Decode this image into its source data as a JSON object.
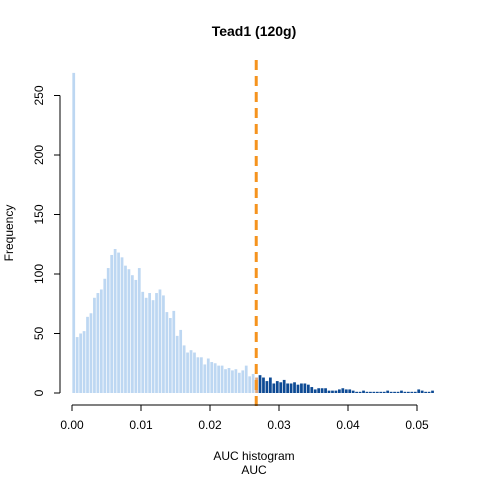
{
  "chart_data": {
    "type": "bar",
    "title": "Tead1 (120g)",
    "xlabel": "AUC histogram",
    "xlabel2": "AUC",
    "ylabel": "Frequency",
    "xlim": [
      0,
      0.053
    ],
    "ylim": [
      0,
      270
    ],
    "x_ticks": [
      0.0,
      0.01,
      0.02,
      0.03,
      0.04,
      0.05
    ],
    "x_tick_labels": [
      "0.00",
      "0.01",
      "0.02",
      "0.03",
      "0.04",
      "0.05"
    ],
    "y_ticks": [
      0,
      50,
      100,
      150,
      200,
      250
    ],
    "y_tick_labels": [
      "0",
      "50",
      "100",
      "150",
      "200",
      "250"
    ],
    "bin_width": 0.0005,
    "bin_start": 0.0,
    "values": [
      269,
      47,
      50,
      52,
      64,
      67,
      80,
      84,
      87,
      96,
      105,
      116,
      121,
      118,
      114,
      107,
      104,
      99,
      95,
      105,
      85,
      80,
      84,
      78,
      84,
      87,
      82,
      68,
      63,
      69,
      48,
      53,
      40,
      34,
      36,
      34,
      30,
      30,
      24,
      29,
      26,
      25,
      23,
      23,
      20,
      21,
      19,
      20,
      17,
      19,
      23,
      14,
      16,
      13,
      15,
      13,
      10,
      13,
      8,
      10,
      9,
      11,
      8,
      8,
      9,
      7,
      8,
      8,
      7,
      5,
      3,
      4,
      4,
      4,
      2,
      2,
      2,
      3,
      4,
      3,
      3,
      2,
      1,
      1,
      2,
      1,
      1,
      1,
      1,
      1,
      1,
      2,
      1,
      1,
      1,
      2,
      1,
      1,
      1,
      1,
      3,
      2,
      1,
      1,
      2
    ],
    "threshold": 0.0267,
    "colors": {
      "below_threshold": "#bdd7f2",
      "above_threshold": "#0d4a94",
      "straddle": "#e3a376",
      "threshold_line": "#f5931e"
    }
  }
}
